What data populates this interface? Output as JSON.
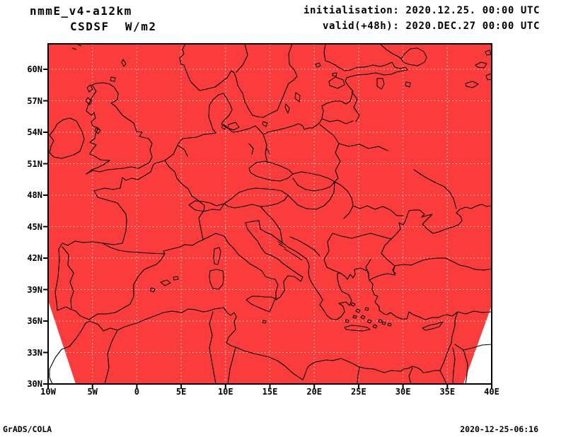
{
  "header": {
    "model": "nmmE_v4-a12km",
    "variable": "CSDSF  W/m2",
    "init": "initialisation: 2020.12.25. 00:00 UTC",
    "valid": "valid(+48h): 2020.DEC.27 00:00 UTC"
  },
  "footer": {
    "credit": "GrADS/COLA",
    "timestamp": "2020-12-25-06:16"
  },
  "axes": {
    "lat_ticks": [
      {
        "label": "30N",
        "deg": 30
      },
      {
        "label": "33N",
        "deg": 33
      },
      {
        "label": "36N",
        "deg": 36
      },
      {
        "label": "39N",
        "deg": 39
      },
      {
        "label": "42N",
        "deg": 42
      },
      {
        "label": "45N",
        "deg": 45
      },
      {
        "label": "48N",
        "deg": 48
      },
      {
        "label": "51N",
        "deg": 51
      },
      {
        "label": "54N",
        "deg": 54
      },
      {
        "label": "57N",
        "deg": 57
      },
      {
        "label": "60N",
        "deg": 60
      }
    ],
    "lon_ticks": [
      {
        "label": "10W",
        "deg": -10
      },
      {
        "label": "5W",
        "deg": -5
      },
      {
        "label": "0",
        "deg": 0
      },
      {
        "label": "5E",
        "deg": 5
      },
      {
        "label": "10E",
        "deg": 10
      },
      {
        "label": "15E",
        "deg": 15
      },
      {
        "label": "20E",
        "deg": 20
      },
      {
        "label": "25E",
        "deg": 25
      },
      {
        "label": "30E",
        "deg": 30
      },
      {
        "label": "35E",
        "deg": 35
      },
      {
        "label": "40E",
        "deg": 40
      }
    ]
  },
  "map": {
    "field_fill": "#fa3c3c",
    "grid_color": "#e2e2e2",
    "outline_color": "#000000"
  }
}
